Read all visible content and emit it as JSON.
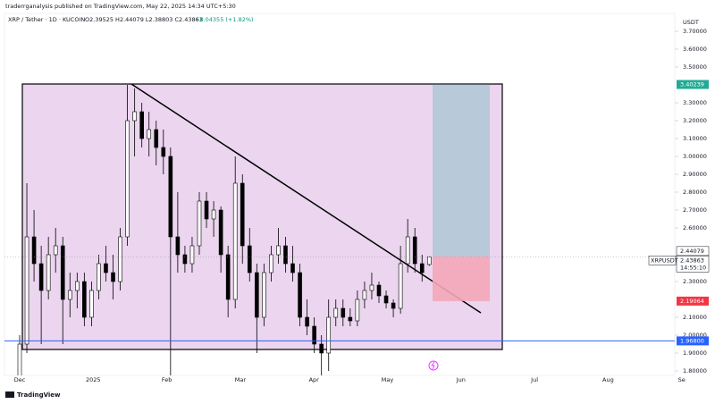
{
  "header": {
    "publisher": "traderrganalysis published on TradingView.com, May 22, 2025 14:34 UTC+5:30",
    "footer": "TradingView"
  },
  "chart_data": {
    "type": "candlestick",
    "title": "XRP / Tether · 1D · KUCOIN",
    "ohlc_summary": "O2.39525 H2.44079 L2.38803 C2.43863",
    "change": "+0.04355 (+1.82%)",
    "y_unit": "USDT",
    "symbol": "XRPUSDT",
    "countdown": "14:55:10",
    "candle_color": "#000000",
    "open": [
      1.75,
      1.95,
      2.55,
      2.4,
      2.25,
      2.45,
      2.5,
      2.2,
      2.25,
      2.3,
      2.1,
      2.25,
      2.4,
      2.35,
      2.3,
      2.55,
      3.2,
      3.25,
      3.1,
      3.15,
      3.05,
      3.0,
      2.55,
      2.45,
      2.4,
      2.5,
      2.75,
      2.65,
      2.7,
      2.45,
      2.2,
      2.85,
      2.5,
      2.35,
      2.1,
      2.35,
      2.45,
      2.5,
      2.4,
      2.35,
      2.1,
      2.05,
      1.95,
      1.9,
      2.1,
      2.15,
      2.1,
      2.08,
      2.2,
      2.25,
      2.28,
      2.22,
      2.18,
      2.15,
      2.4,
      2.55,
      2.4,
      2.39525
    ],
    "high": [
      2.0,
      2.85,
      2.7,
      2.5,
      2.55,
      2.6,
      2.55,
      2.35,
      2.35,
      2.35,
      2.3,
      2.45,
      2.5,
      2.45,
      2.6,
      3.4,
      3.38,
      3.3,
      3.25,
      3.2,
      3.15,
      3.05,
      2.8,
      2.5,
      2.55,
      2.8,
      2.8,
      2.75,
      2.72,
      2.5,
      3.0,
      2.9,
      2.6,
      2.4,
      2.4,
      2.5,
      2.6,
      2.55,
      2.5,
      2.4,
      2.2,
      2.1,
      2.0,
      2.2,
      2.2,
      2.2,
      2.15,
      2.25,
      2.3,
      2.35,
      2.3,
      2.25,
      2.2,
      2.5,
      2.65,
      2.6,
      2.45,
      2.44079
    ],
    "low": [
      1.7,
      1.9,
      2.3,
      1.95,
      2.2,
      2.35,
      1.95,
      2.1,
      2.15,
      2.05,
      2.05,
      2.2,
      2.3,
      2.2,
      2.25,
      2.5,
      3.0,
      3.05,
      3.0,
      2.95,
      2.9,
      1.77,
      2.35,
      2.35,
      2.35,
      2.45,
      2.6,
      2.55,
      2.35,
      2.1,
      2.15,
      2.4,
      2.3,
      1.9,
      2.05,
      2.3,
      2.4,
      2.35,
      2.3,
      2.05,
      2.0,
      1.9,
      1.61,
      1.8,
      2.05,
      2.05,
      2.05,
      2.05,
      2.15,
      2.2,
      2.18,
      2.15,
      2.1,
      2.12,
      2.35,
      2.35,
      2.3,
      2.38803
    ],
    "close": [
      1.95,
      2.55,
      2.4,
      2.25,
      2.45,
      2.5,
      2.2,
      2.25,
      2.3,
      2.1,
      2.25,
      2.4,
      2.35,
      2.3,
      2.55,
      3.2,
      3.25,
      3.1,
      3.15,
      3.05,
      3.0,
      2.55,
      2.45,
      2.4,
      2.5,
      2.75,
      2.65,
      2.7,
      2.45,
      2.2,
      2.85,
      2.5,
      2.35,
      2.1,
      2.35,
      2.45,
      2.5,
      2.4,
      2.35,
      2.1,
      2.05,
      1.95,
      1.9,
      2.1,
      2.15,
      2.1,
      2.08,
      2.2,
      2.25,
      2.28,
      2.22,
      2.18,
      2.15,
      2.4,
      2.55,
      2.4,
      2.35,
      2.43863
    ],
    "ylim": [
      1.775,
      3.8
    ],
    "yticks": [
      {
        "value": 3.7,
        "label": "3.70000"
      },
      {
        "value": 3.6,
        "label": "3.60000"
      },
      {
        "value": 3.5,
        "label": "3.50000"
      },
      {
        "value": 3.3,
        "label": "3.30000"
      },
      {
        "value": 3.2,
        "label": "3.20000"
      },
      {
        "value": 3.1,
        "label": "3.10000"
      },
      {
        "value": 3.0,
        "label": "3.00000"
      },
      {
        "value": 2.9,
        "label": "2.90000"
      },
      {
        "value": 2.8,
        "label": "2.80000"
      },
      {
        "value": 2.7,
        "label": "2.70000"
      },
      {
        "value": 2.6,
        "label": "2.60000"
      },
      {
        "value": 2.3,
        "label": "2.30000"
      },
      {
        "value": 2.1,
        "label": "2.10000"
      },
      {
        "value": 2.0,
        "label": "2.00000"
      },
      {
        "value": 1.9,
        "label": "1.90000"
      },
      {
        "value": 1.8,
        "label": "1.80000"
      }
    ],
    "x_labels": [
      "Dec",
      "2025",
      "Feb",
      "Mar",
      "Apr",
      "May",
      "Jun",
      "Jul",
      "Aug",
      "Se"
    ],
    "price_labels": [
      {
        "value": 3.40239,
        "color": "#22ab94"
      },
      {
        "value": 2.44079,
        "color": "#ffffff"
      },
      {
        "value": 2.43863,
        "color": "#ffffff"
      },
      {
        "value": 2.19064,
        "color": "#f23645"
      },
      {
        "value": {
          "value": 1.968,
          "label": "1.96800"
        },
        "color": "#2962ff"
      }
    ]
  }
}
